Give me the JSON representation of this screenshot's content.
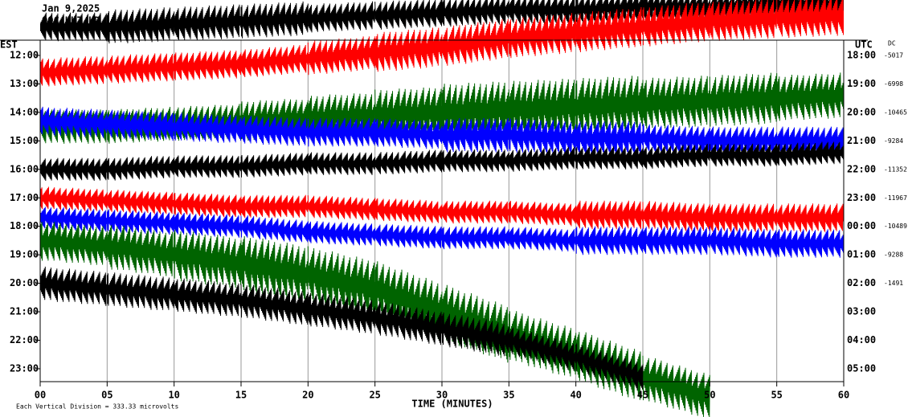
{
  "chart_data": {
    "type": "helicorder",
    "title": "Jan 9,2025",
    "subtitle": "OOC HHZ LD",
    "left_label": "EST",
    "right_label": "UTC",
    "dc_label": "DC",
    "xlabel": "TIME (MINUTES)",
    "footer": "Each Vertical Division =  333.33 microvolts",
    "xlim": [
      0,
      60
    ],
    "xticks": [
      {
        "value": 0,
        "label": "00"
      },
      {
        "value": 5,
        "label": "05"
      },
      10,
      15,
      20,
      25,
      30,
      35,
      40,
      45,
      50,
      55,
      60
    ],
    "grid": true,
    "rows": [
      {
        "est": "12:00",
        "utc": "18:00",
        "dc": -5017
      },
      {
        "est": "13:00",
        "utc": "19:00",
        "dc": -6998
      },
      {
        "est": "14:00",
        "utc": "20:00",
        "dc": -10465
      },
      {
        "est": "15:00",
        "utc": "21:00",
        "dc": -9284
      },
      {
        "est": "16:00",
        "utc": "22:00",
        "dc": -11352
      },
      {
        "est": "17:00",
        "utc": "23:00",
        "dc": -11967
      },
      {
        "est": "18:00",
        "utc": "00:00",
        "dc": -10489
      },
      {
        "est": "19:00",
        "utc": "01:00",
        "dc": -9288
      },
      {
        "est": "20:00",
        "utc": "02:00",
        "dc": -1491
      },
      {
        "est": "21:00",
        "utc": "03:00"
      },
      {
        "est": "22:00",
        "utc": "04:00"
      },
      {
        "est": "23:00",
        "utc": "05:00"
      }
    ],
    "traces": [
      {
        "color": "#000000",
        "offset": [
          -1,
          -1,
          -1.1,
          -1.2,
          -1.3,
          -1.4,
          -1.5,
          -1.6,
          -1.6,
          -1.7,
          -1.7,
          -1.8,
          -1.8
        ],
        "amplitude": [
          0.5,
          0.6,
          0.6,
          0.6,
          0.5,
          0.5,
          0.5,
          0.5,
          0.5,
          0.5,
          0.5,
          0.5,
          0.5
        ]
      },
      {
        "color": "#ff0000",
        "offset": [
          -0.4,
          -0.5,
          -0.6,
          -0.7,
          -0.9,
          -1.1,
          -1.3,
          -1.6,
          -1.8,
          -2,
          -2.2,
          -2.3,
          -2.4
        ],
        "amplitude": [
          0.5,
          0.5,
          0.5,
          0.5,
          0.6,
          0.7,
          0.7,
          0.7,
          0.7,
          0.7,
          0.7,
          0.7,
          0.7
        ]
      },
      {
        "color": "#006400",
        "offset": [
          0.5,
          0.5,
          0.4,
          0.3,
          0.2,
          0.1,
          0,
          -0.1,
          -0.2,
          -0.3,
          -0.4,
          -0.5,
          -0.6
        ],
        "amplitude": [
          0.6,
          0.6,
          0.6,
          0.7,
          0.8,
          0.9,
          1,
          1,
          1,
          0.9,
          0.9,
          0.8,
          0.8
        ]
      },
      {
        "color": "#0000ff",
        "offset": [
          -0.7,
          -0.6,
          -0.5,
          -0.4,
          -0.3,
          -0.3,
          -0.2,
          -0.2,
          -0.1,
          -0.1,
          0,
          0,
          0
        ],
        "amplitude": [
          0.5,
          0.5,
          0.5,
          0.5,
          0.5,
          0.5,
          0.6,
          0.6,
          0.6,
          0.5,
          0.5,
          0.5,
          0.5
        ]
      },
      {
        "color": "#000000",
        "offset": [
          0,
          0,
          -0.1,
          -0.1,
          -0.2,
          -0.2,
          -0.3,
          -0.3,
          -0.4,
          -0.4,
          -0.5,
          -0.5,
          -0.6
        ],
        "amplitude": [
          0.4,
          0.4,
          0.4,
          0.4,
          0.4,
          0.4,
          0.4,
          0.4,
          0.4,
          0.4,
          0.4,
          0.4,
          0.4
        ]
      },
      {
        "color": "#ff0000",
        "offset": [
          0,
          0.1,
          0.2,
          0.3,
          0.3,
          0.4,
          0.5,
          0.5,
          0.6,
          0.6,
          0.7,
          0.7,
          0.7
        ],
        "amplitude": [
          0.4,
          0.4,
          0.4,
          0.4,
          0.4,
          0.4,
          0.4,
          0.4,
          0.5,
          0.5,
          0.5,
          0.5,
          0.5
        ]
      },
      {
        "color": "#0000ff",
        "offset": [
          -0.3,
          -0.2,
          -0.1,
          0,
          0.2,
          0.3,
          0.4,
          0.4,
          0.5,
          0.5,
          0.5,
          0.6,
          0.6
        ],
        "amplitude": [
          0.4,
          0.4,
          0.4,
          0.4,
          0.4,
          0.4,
          0.4,
          0.4,
          0.5,
          0.5,
          0.5,
          0.5,
          0.5
        ]
      },
      {
        "color": "#006400",
        "offset": [
          -0.5,
          -0.3,
          0,
          0.3,
          0.7,
          1.2,
          2,
          2.8,
          3.5,
          4.3,
          5,
          null,
          null
        ],
        "amplitude": [
          0.7,
          0.8,
          0.9,
          1,
          1,
          1,
          1,
          0.9,
          0.9,
          0.8,
          0.7,
          null,
          null
        ]
      },
      {
        "color": "#000000",
        "offset": [
          0,
          0.2,
          0.4,
          0.6,
          0.9,
          1.2,
          1.6,
          2,
          2.6,
          3.3,
          null,
          null,
          null
        ],
        "amplitude": [
          0.6,
          0.6,
          0.6,
          0.6,
          0.6,
          0.6,
          0.6,
          0.5,
          0.5,
          0.5,
          null,
          null,
          null
        ]
      }
    ]
  }
}
